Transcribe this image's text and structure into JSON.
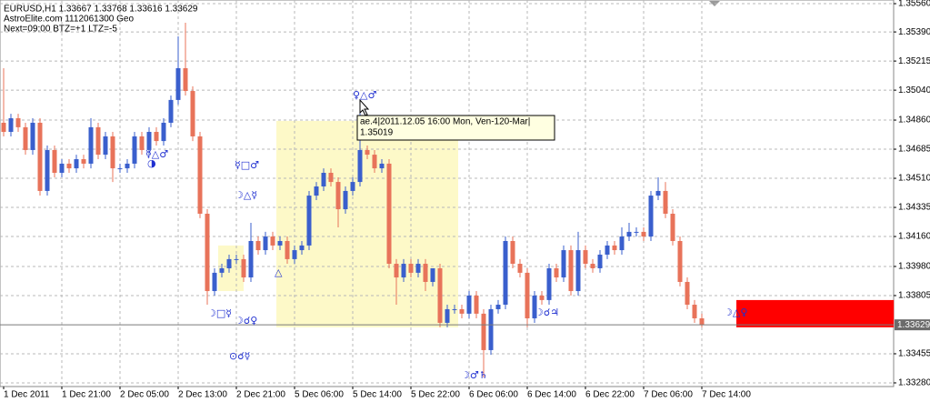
{
  "chart_data": {
    "type": "candlestick",
    "header": [
      "EURUSD,H1  1.33667 1.33768 1.33616 1.33629",
      "AstroElite.com 1112061300 Geo",
      "Next=09:00 BTZ=+1 LTZ=-5"
    ],
    "up_color": "#3a5fcd",
    "down_color": "#e8735a",
    "categories": [
      "1 Dec 2011",
      null,
      null,
      null,
      null,
      null,
      null,
      null,
      "1 Dec 21:00",
      null,
      null,
      null,
      null,
      null,
      null,
      null,
      "2 Dec 05:00",
      null,
      null,
      null,
      null,
      null,
      null,
      null,
      "2 Dec 13:00",
      null,
      null,
      null,
      null,
      null,
      null,
      null,
      "2 Dec 21:00",
      null,
      null,
      null,
      null,
      null,
      null,
      null,
      "5 Dec 06:00",
      null,
      null,
      null,
      null,
      null,
      null,
      null,
      "5 Dec 14:00",
      null,
      null,
      null,
      null,
      null,
      null,
      null,
      "5 Dec 22:00",
      null,
      null,
      null,
      null,
      null,
      null,
      null,
      "6 Dec 06:00",
      null,
      null,
      null,
      null,
      null,
      null,
      null,
      "6 Dec 14:00",
      null,
      null,
      null,
      null,
      null,
      null,
      null,
      "6 Dec 22:00",
      null,
      null,
      null,
      null,
      null,
      null,
      null,
      "7 Dec 06:00",
      null,
      null,
      null,
      null,
      null,
      null,
      null,
      "7 Dec 14:00"
    ],
    "open": [
      1.34844,
      1.34789,
      1.34871,
      1.34817,
      1.3468,
      1.34844,
      1.34434,
      1.3468,
      1.34543,
      1.34598,
      1.3457,
      1.34625,
      1.34598,
      1.34817,
      1.34652,
      1.34762,
      1.3457,
      1.3457,
      1.34598,
      1.34762,
      1.3468,
      1.34789,
      1.34734,
      1.34844,
      1.34981,
      1.35172,
      1.35035,
      1.34762,
      1.34297,
      1.33832,
      1.33942,
      1.33969,
      1.34024,
      1.34024,
      1.33914,
      1.34133,
      1.34078,
      1.3416,
      1.34106,
      1.34133,
      1.34024,
      1.34078,
      1.34106,
      1.34406,
      1.34461,
      1.34543,
      1.34488,
      1.34324,
      1.34434,
      1.34488,
      1.3468,
      1.34652,
      1.3457,
      1.34598,
      1.33996,
      1.33914,
      1.33996,
      1.33942,
      1.33996,
      1.33887,
      1.33969,
      1.33641,
      1.33723,
      1.33723,
      1.33696,
      1.33805,
      1.33696,
      1.33477,
      1.33723,
      1.3375,
      1.34133,
      1.33996,
      1.33942,
      1.33668,
      1.33805,
      1.33778,
      1.33969,
      1.33914,
      1.34078,
      1.33832,
      1.34078,
      1.33996,
      1.33969,
      1.34051,
      1.34106,
      1.34078,
      1.3416,
      1.34188,
      1.34188,
      1.3416,
      1.34406,
      1.34434,
      1.34297,
      1.34133,
      1.33887,
      1.3375,
      1.33668
    ],
    "high": [
      1.35172,
      1.34898,
      1.34898,
      1.34844,
      1.34871,
      1.34871,
      1.34707,
      1.34707,
      1.34625,
      1.34625,
      1.34652,
      1.34652,
      1.34871,
      1.34844,
      1.34789,
      1.34789,
      1.34598,
      1.34625,
      1.34789,
      1.34789,
      1.34817,
      1.34817,
      1.34871,
      1.35008,
      1.35363,
      1.35445,
      1.35063,
      1.34789,
      1.34324,
      1.33969,
      1.33996,
      1.34051,
      1.34051,
      1.34051,
      1.34242,
      1.3416,
      1.34188,
      1.34188,
      1.3416,
      1.3416,
      1.34106,
      1.34133,
      1.34434,
      1.34488,
      1.3457,
      1.3457,
      1.34516,
      1.34461,
      1.34516,
      1.34981,
      1.34707,
      1.3468,
      1.34625,
      1.34625,
      1.34024,
      1.34024,
      1.34024,
      1.34024,
      1.34024,
      1.33969,
      1.33996,
      1.3375,
      1.3375,
      1.3375,
      1.33832,
      1.33832,
      1.33723,
      1.3375,
      1.33778,
      1.3416,
      1.3416,
      1.34024,
      1.33969,
      1.33832,
      1.33832,
      1.33996,
      1.33996,
      1.34106,
      1.34106,
      1.34188,
      1.34106,
      1.34024,
      1.34078,
      1.34133,
      1.34133,
      1.34215,
      1.34242,
      1.34215,
      1.34215,
      1.34434,
      1.34516,
      1.34488,
      1.34324,
      1.3416,
      1.33914,
      1.33778,
      1.33696
    ],
    "low": [
      1.34762,
      1.34762,
      1.34789,
      1.34652,
      1.34652,
      1.34406,
      1.34406,
      1.34516,
      1.34516,
      1.34543,
      1.34543,
      1.3457,
      1.3457,
      1.34625,
      1.34625,
      1.34488,
      1.34543,
      1.34543,
      1.3457,
      1.34652,
      1.34652,
      1.34707,
      1.34707,
      1.34817,
      1.34953,
      1.35008,
      1.34734,
      1.3427,
      1.3375,
      1.33805,
      1.33914,
      1.33942,
      1.33996,
      1.33887,
      1.33887,
      1.34051,
      1.34051,
      1.34078,
      1.34078,
      1.33996,
      1.33996,
      1.34051,
      1.34078,
      1.34379,
      1.34434,
      1.34461,
      1.34215,
      1.34297,
      1.34406,
      1.34461,
      1.34625,
      1.34543,
      1.34543,
      1.33969,
      1.3375,
      1.33887,
      1.33914,
      1.33914,
      1.33832,
      1.3386,
      1.33614,
      1.33614,
      1.33696,
      1.33668,
      1.33668,
      1.33668,
      1.33313,
      1.33449,
      1.33696,
      1.33723,
      1.33969,
      1.33914,
      1.33614,
      1.33641,
      1.3375,
      1.3375,
      1.33887,
      1.33887,
      1.33805,
      1.33805,
      1.33969,
      1.33942,
      1.33942,
      1.34024,
      1.34051,
      1.34051,
      1.34133,
      1.3416,
      1.34133,
      1.34133,
      1.34379,
      1.3427,
      1.34106,
      1.3386,
      1.33723,
      1.33641,
      1.33614
    ],
    "close": [
      1.34789,
      1.34871,
      1.34817,
      1.3468,
      1.34844,
      1.34434,
      1.3468,
      1.34543,
      1.34598,
      1.3457,
      1.34625,
      1.34598,
      1.34817,
      1.34652,
      1.34762,
      1.3457,
      1.3457,
      1.34598,
      1.34762,
      1.3468,
      1.34789,
      1.34734,
      1.34844,
      1.34981,
      1.35172,
      1.35035,
      1.34762,
      1.34297,
      1.33832,
      1.33942,
      1.33969,
      1.34024,
      1.34024,
      1.33914,
      1.34133,
      1.34078,
      1.3416,
      1.34106,
      1.34133,
      1.34024,
      1.34078,
      1.34106,
      1.34406,
      1.34461,
      1.34543,
      1.34488,
      1.34324,
      1.34434,
      1.34488,
      1.3468,
      1.34652,
      1.3457,
      1.34598,
      1.33996,
      1.33914,
      1.33996,
      1.33942,
      1.33996,
      1.33887,
      1.33969,
      1.33641,
      1.33723,
      1.33723,
      1.33696,
      1.33805,
      1.33696,
      1.33477,
      1.33723,
      1.3375,
      1.34133,
      1.33996,
      1.33942,
      1.33668,
      1.33805,
      1.33778,
      1.33969,
      1.33914,
      1.34078,
      1.33832,
      1.34078,
      1.33996,
      1.33969,
      1.34051,
      1.34106,
      1.34078,
      1.3416,
      1.34188,
      1.34188,
      1.3416,
      1.34406,
      1.34434,
      1.34297,
      1.34133,
      1.33887,
      1.3375,
      1.33668,
      1.33629
    ],
    "ylim": [
      1.33258,
      1.35582
    ],
    "yticks": [
      {
        "value": 1.3556,
        "label": "1.35560"
      },
      {
        "value": 1.3539,
        "label": "1.35390"
      },
      1.35215,
      {
        "value": 1.3504,
        "label": "1.35040"
      },
      {
        "value": 1.3486,
        "label": "1.34860"
      },
      1.34685,
      {
        "value": 1.3451,
        "label": "1.34510"
      },
      1.34335,
      {
        "value": 1.3416,
        "label": "1.34160"
      },
      {
        "value": 1.3398,
        "label": "1.33980"
      },
      1.33805,
      1.33455,
      {
        "value": 1.3328,
        "label": "1.33280"
      }
    ],
    "current_price": 1.33629,
    "grid": true,
    "zones": [
      {
        "from": 37.5,
        "to": 62.5,
        "high": 1.34855,
        "low": 1.33614,
        "color": "#fdf9c8"
      },
      {
        "from": 29.5,
        "to": 33,
        "high": 1.34106,
        "low": 1.33832,
        "color": "#fdf9c8"
      },
      {
        "from": 100.75,
        "to": 122.4,
        "high": 1.33778,
        "low": 1.33614,
        "color": "#ff0000"
      }
    ],
    "annotations": [
      "♀△♂",
      "☿△♂",
      "◑",
      "☿□♂",
      "☽△☿",
      "△",
      "☽□☿",
      "☽☌♀",
      "⊙☌☿",
      "☽☌♃",
      "☽♂♄",
      "☽△♀"
    ],
    "tooltip": [
      "ae.4|2011.12.05 16:00 Mon, Ven-120-Mar|",
      "1.35019"
    ]
  }
}
